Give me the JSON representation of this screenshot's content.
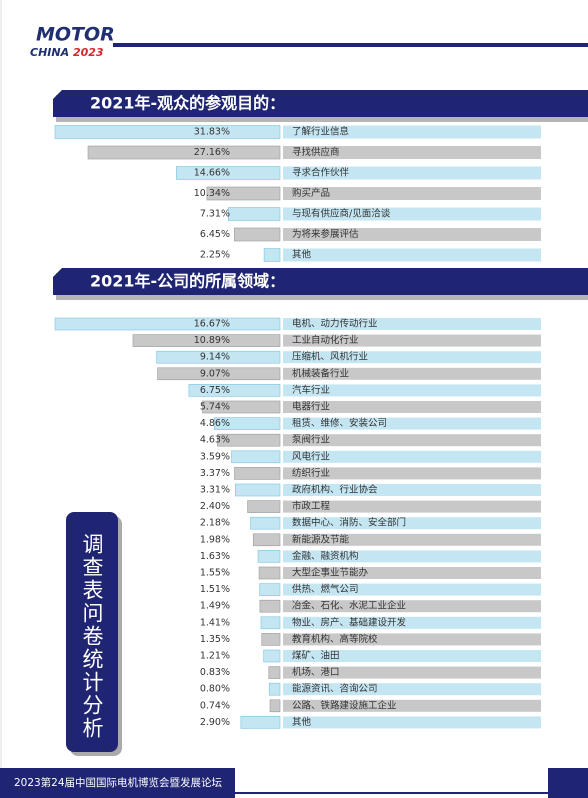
{
  "logo": {
    "line1": "MOTOR",
    "line2": "CHINA",
    "year": "2023"
  },
  "side_label": "调查表问卷统计分析",
  "footer": "2023第24届中国国际电机博览会暨发展论坛",
  "chart_data": [
    {
      "type": "bar",
      "orientation": "horizontal",
      "title": "2021年-观众的参观目的：",
      "categories": [
        "了解行业信息",
        "寻找供应商",
        "寻求合作伙伴",
        "购买产品",
        "与现有供应商/见面洽谈",
        "为将来参展评估",
        "其他"
      ],
      "values": [
        31.83,
        27.16,
        14.66,
        10.34,
        7.31,
        6.45,
        2.25
      ],
      "value_labels": [
        "31.83%",
        "27.16%",
        "14.66%",
        "10.34%",
        "7.31%",
        "6.45%",
        "2.25%"
      ],
      "colors": [
        "#c4e6f3",
        "#c8c8c8"
      ]
    },
    {
      "type": "bar",
      "orientation": "horizontal",
      "title": "2021年-公司的所属领域：",
      "categories": [
        "电机、动力传动行业",
        "工业自动化行业",
        "压缩机、风机行业",
        "机械装备行业",
        "汽车行业",
        "电器行业",
        "租赁、维修、安装公司",
        "泵阀行业",
        "风电行业",
        "纺织行业",
        "政府机构、行业协会",
        "市政工程",
        "数据中心、消防、安全部门",
        "新能源及节能",
        "金融、融资机构",
        "大型企事业节能办",
        "供热、燃气公司",
        "冶金、石化、水泥工业企业",
        "物业、房产、基础建设开发",
        "教育机构、高等院校",
        "煤矿、油田",
        "机场、港口",
        "能源资讯、咨询公司",
        "公路、铁路建设施工企业",
        "其他"
      ],
      "values": [
        16.67,
        10.89,
        9.14,
        9.07,
        6.75,
        5.74,
        4.86,
        4.63,
        3.59,
        3.37,
        3.31,
        2.4,
        2.18,
        1.98,
        1.63,
        1.55,
        1.51,
        1.49,
        1.41,
        1.35,
        1.21,
        0.83,
        0.8,
        0.74,
        2.9
      ],
      "value_labels": [
        "16.67%",
        "10.89%",
        "9.14%",
        "9.07%",
        "6.75%",
        "5.74%",
        "4.86%",
        "4.63%",
        "3.59%",
        "3.37%",
        "3.31%",
        "2.40%",
        "2.18%",
        "1.98%",
        "1.63%",
        "1.55%",
        "1.51%",
        "1.49%",
        "1.41%",
        "1.35%",
        "1.21%",
        "0.83%",
        "0.80%",
        "0.74%",
        "2.90%"
      ],
      "colors": [
        "#c4e6f3",
        "#c8c8c8"
      ]
    }
  ]
}
